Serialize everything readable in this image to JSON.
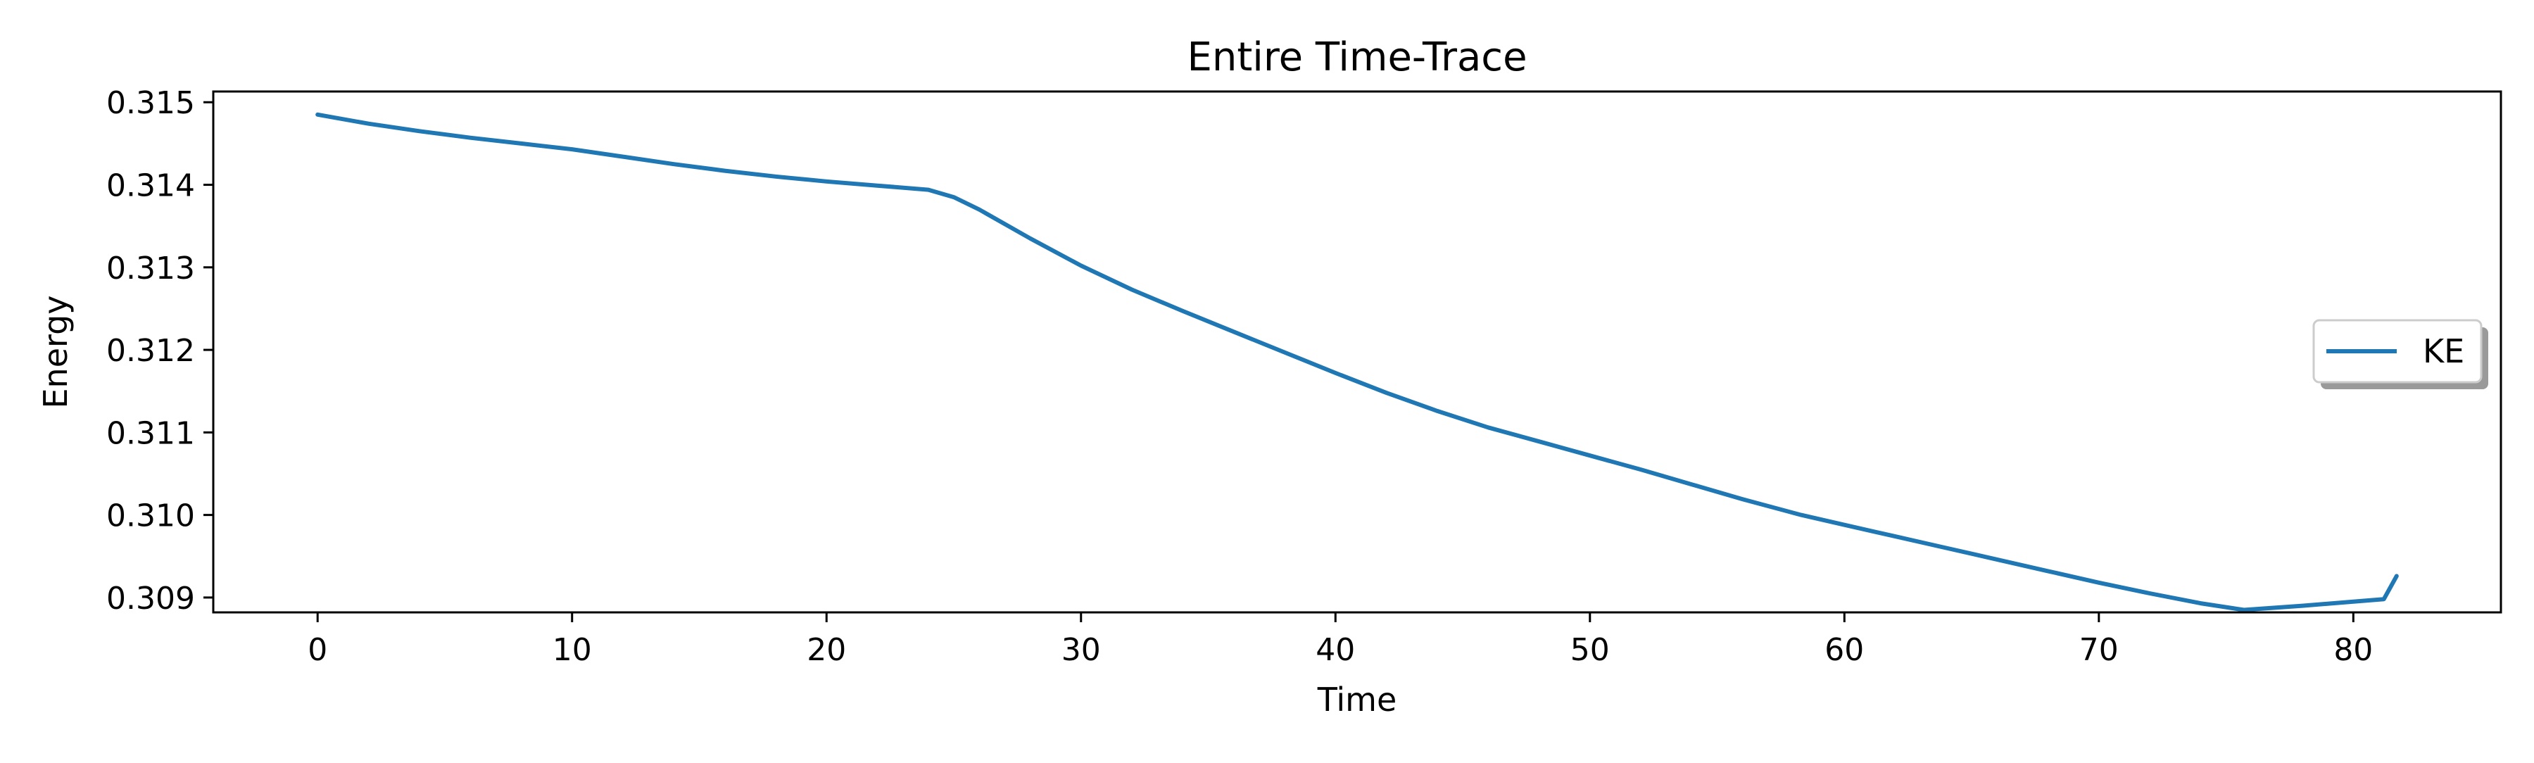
{
  "chart_data": {
    "type": "line",
    "title": "Entire Time-Trace",
    "xlabel": "Time",
    "ylabel": "Energy",
    "xlim": [
      -4.1,
      85.8
    ],
    "ylim": [
      0.30882,
      0.31513
    ],
    "xticks": [
      0,
      10,
      20,
      30,
      40,
      50,
      60,
      70,
      80
    ],
    "xtick_labels": [
      "0",
      "10",
      "20",
      "30",
      "40",
      "50",
      "60",
      "70",
      "80"
    ],
    "yticks": [
      0.309,
      0.31,
      0.311,
      0.312,
      0.313,
      0.314,
      0.315
    ],
    "ytick_labels": [
      "0.309",
      "0.310",
      "0.311",
      "0.312",
      "0.313",
      "0.314",
      "0.315"
    ],
    "grid": false,
    "legend": {
      "position": "center-right",
      "shadow": true
    },
    "series": [
      {
        "name": "KE",
        "color": "#1f77b4",
        "x": [
          0,
          2,
          4,
          6,
          8,
          10,
          12,
          14,
          16,
          18,
          20,
          22,
          24,
          25,
          26,
          28,
          30,
          32,
          34,
          36,
          38,
          40,
          42,
          44,
          46,
          48,
          50,
          52,
          54,
          56,
          58.3,
          60,
          62,
          64,
          66,
          68,
          70,
          72,
          74,
          75.7,
          78,
          80,
          81.2,
          81.7
        ],
        "values": [
          0.31485,
          0.31474,
          0.31465,
          0.31457,
          0.3145,
          0.31443,
          0.31434,
          0.31425,
          0.31417,
          0.3141,
          0.31404,
          0.31399,
          0.31394,
          0.31385,
          0.3137,
          0.31335,
          0.31302,
          0.31273,
          0.31247,
          0.31222,
          0.31197,
          0.31172,
          0.31148,
          0.31126,
          0.31106,
          0.31089,
          0.31072,
          0.31055,
          0.31037,
          0.31019,
          0.31,
          0.30988,
          0.30974,
          0.3096,
          0.30946,
          0.30932,
          0.30918,
          0.30905,
          0.30893,
          0.30885,
          0.3089,
          0.30895,
          0.30898,
          0.30926
        ]
      }
    ]
  }
}
